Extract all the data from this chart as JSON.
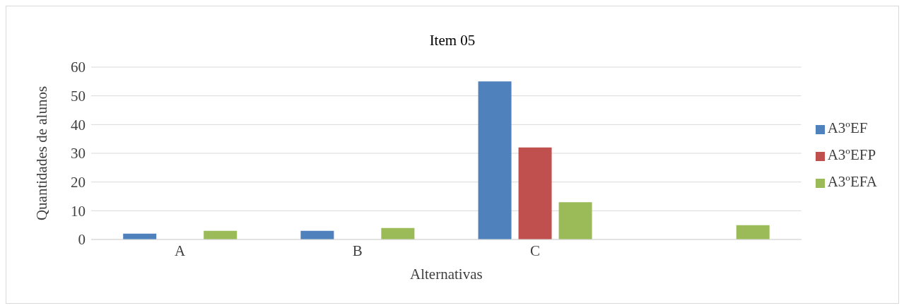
{
  "chart_data": {
    "type": "bar",
    "title": "Item 05",
    "xlabel": "Alternativas",
    "ylabel": "Quantidades de alunos",
    "categories": [
      "A",
      "B",
      "C",
      null
    ],
    "series": [
      {
        "name": "A3ºEF",
        "color": "#4f81bd",
        "values": [
          2,
          3,
          55,
          0
        ]
      },
      {
        "name": "A3ºEFP",
        "color": "#c0504d",
        "values": [
          0,
          0,
          32,
          0
        ]
      },
      {
        "name": "A3ºEFA",
        "color": "#9bbb59",
        "values": [
          3,
          4,
          13,
          5
        ]
      }
    ],
    "ylim": [
      0,
      60
    ],
    "yticks": [
      0,
      10,
      20,
      30,
      40,
      50,
      60
    ],
    "grid": "y",
    "legend": "right"
  }
}
